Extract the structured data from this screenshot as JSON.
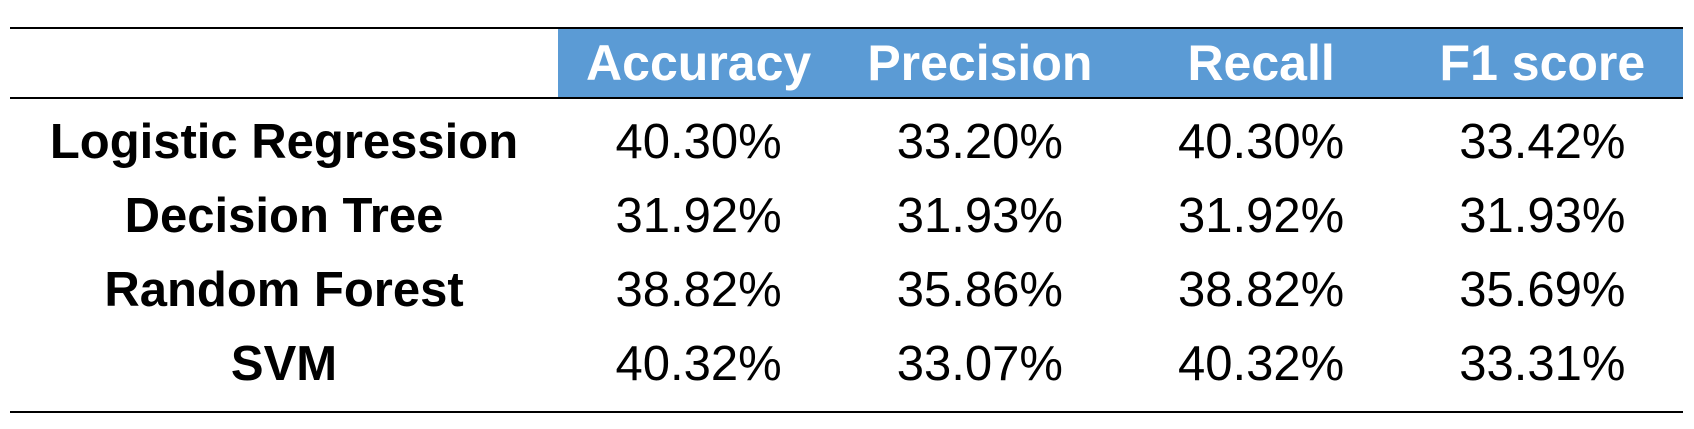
{
  "chart_data": {
    "type": "table",
    "columns": [
      "Accuracy",
      "Precision",
      "Recall",
      "F1 score"
    ],
    "rows": [
      {
        "model": "Logistic Regression",
        "values": [
          "40.30%",
          "33.20%",
          "40.30%",
          "33.42%"
        ]
      },
      {
        "model": "Decision Tree",
        "values": [
          "31.92%",
          "31.93%",
          "31.92%",
          "31.93%"
        ]
      },
      {
        "model": "Random Forest",
        "values": [
          "38.82%",
          "35.86%",
          "38.82%",
          "35.69%"
        ]
      },
      {
        "model": "SVM",
        "values": [
          "40.32%",
          "33.07%",
          "40.32%",
          "33.31%"
        ]
      }
    ]
  },
  "colors": {
    "header_band": "#5b9bd5",
    "header_text": "#ffffff",
    "body_text": "#000000",
    "rule": "#000000"
  }
}
